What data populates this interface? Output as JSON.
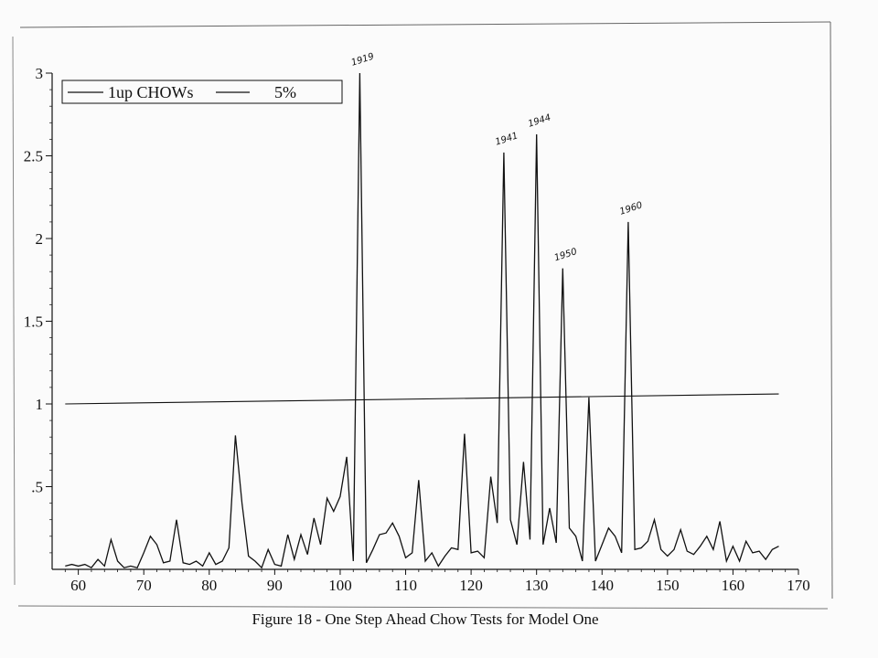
{
  "chart_data": {
    "type": "line",
    "title": "",
    "xlabel": "",
    "ylabel": "",
    "xlim": [
      56,
      170
    ],
    "ylim": [
      0,
      3
    ],
    "x_ticks": [
      "60",
      "70",
      "80",
      "90",
      "100",
      "110",
      "120",
      "130",
      "140",
      "150",
      "160",
      "170"
    ],
    "y_ticks": [
      ".5",
      "1",
      "1.5",
      "2",
      "2.5",
      "3"
    ],
    "legend": {
      "position": "top-left",
      "entries": [
        "1up CHOWs",
        "5%"
      ]
    },
    "series": [
      {
        "name": "1up CHOWs",
        "x": [
          58,
          59,
          60,
          61,
          62,
          63,
          64,
          65,
          66,
          67,
          68,
          69,
          70,
          71,
          72,
          73,
          74,
          75,
          76,
          77,
          78,
          79,
          80,
          81,
          82,
          83,
          84,
          85,
          86,
          87,
          88,
          89,
          90,
          91,
          92,
          93,
          94,
          95,
          96,
          97,
          98,
          99,
          100,
          101,
          102,
          103,
          104,
          105,
          106,
          107,
          108,
          109,
          110,
          111,
          112,
          113,
          114,
          115,
          116,
          117,
          118,
          119,
          120,
          121,
          122,
          123,
          124,
          125,
          126,
          127,
          128,
          129,
          130,
          131,
          132,
          133,
          134,
          135,
          136,
          137,
          138,
          139,
          140,
          141,
          142,
          143,
          144,
          145,
          146,
          147,
          148,
          149,
          150,
          151,
          152,
          153,
          154,
          155,
          156,
          157,
          158,
          159,
          160,
          161,
          162,
          163,
          164,
          165,
          166,
          167
        ],
        "values": [
          0.02,
          0.03,
          0.02,
          0.03,
          0.01,
          0.06,
          0.02,
          0.18,
          0.05,
          0.01,
          0.02,
          0.01,
          0.1,
          0.2,
          0.15,
          0.04,
          0.05,
          0.3,
          0.04,
          0.03,
          0.05,
          0.02,
          0.1,
          0.03,
          0.05,
          0.13,
          0.81,
          0.4,
          0.08,
          0.05,
          0.01,
          0.12,
          0.03,
          0.02,
          0.21,
          0.06,
          0.21,
          0.09,
          0.31,
          0.15,
          0.43,
          0.35,
          0.44,
          0.68,
          0.05,
          3.0,
          0.04,
          0.12,
          0.21,
          0.22,
          0.28,
          0.2,
          0.07,
          0.1,
          0.54,
          0.05,
          0.1,
          0.02,
          0.08,
          0.13,
          0.12,
          0.82,
          0.1,
          0.11,
          0.07,
          0.56,
          0.28,
          2.52,
          0.3,
          0.15,
          0.65,
          0.18,
          2.63,
          0.15,
          0.37,
          0.16,
          1.82,
          0.25,
          0.2,
          0.05,
          1.04,
          0.05,
          0.15,
          0.25,
          0.2,
          0.1,
          2.1,
          0.12,
          0.13,
          0.17,
          0.3,
          0.12,
          0.08,
          0.12,
          0.24,
          0.11,
          0.09,
          0.14,
          0.2,
          0.12,
          0.29,
          0.05,
          0.14,
          0.05,
          0.17,
          0.1,
          0.11,
          0.06,
          0.12,
          0.14
        ]
      },
      {
        "name": "5%",
        "x": [
          58,
          167
        ],
        "values": [
          1.0,
          1.06
        ]
      }
    ],
    "annotations": [
      {
        "text": "1919",
        "x": 103,
        "y": 3.0
      },
      {
        "text": "1941",
        "x": 125,
        "y": 2.52
      },
      {
        "text": "1944",
        "x": 130,
        "y": 2.63
      },
      {
        "text": "1950",
        "x": 134,
        "y": 1.82
      },
      {
        "text": "1960",
        "x": 144,
        "y": 2.1
      }
    ],
    "grid": false
  },
  "caption": "Figure 18 - One Step Ahead Chow Tests for Model One",
  "colors": {
    "line": "#111111",
    "background": "#fbfbfb"
  }
}
